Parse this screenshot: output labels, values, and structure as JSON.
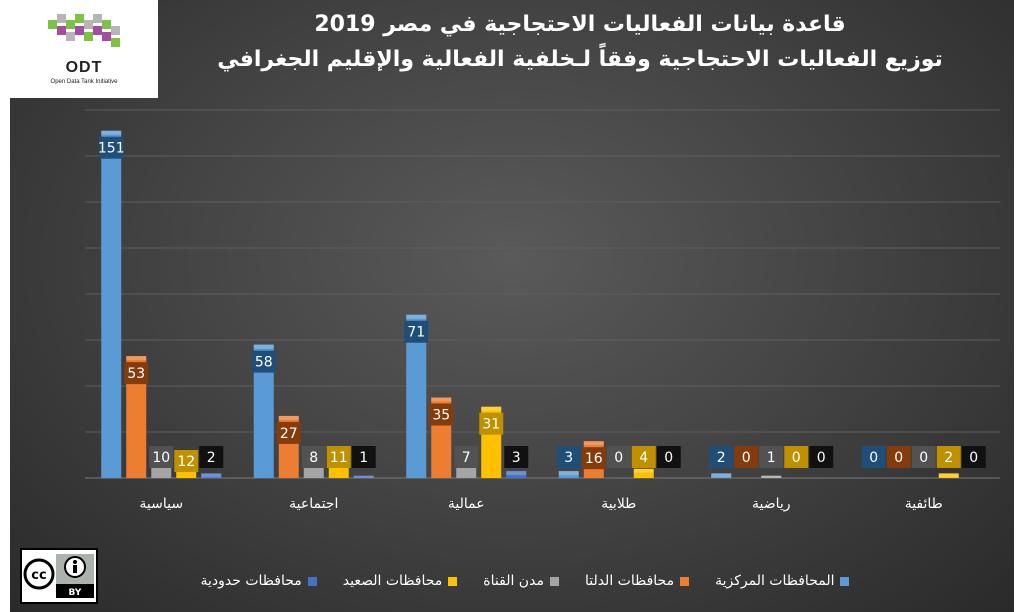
{
  "logo": {
    "name": "ODT",
    "subtitle": "Open Data Tank Initiative"
  },
  "license": {
    "label": "BY",
    "icon": "creative-commons-by-icon"
  },
  "chart_data": {
    "type": "bar",
    "title": "قاعدة بيانات الفعاليات الاحتجاجية في مصر 2019",
    "subtitle": "توزيع الفعاليات الاحتجاجية وفقاً لـخلفية الفعالية والإقليم الجغرافي",
    "categories": [
      "سياسية",
      "اجتماعية",
      "عمالية",
      "طلابية",
      "رياضية",
      "طائفية"
    ],
    "ylim": [
      0,
      160
    ],
    "grid": true,
    "legend_position": "bottom",
    "series": [
      {
        "name": "المحافظات المركزية",
        "color": "#5b9bd5",
        "label_color": "#1f4e79",
        "values": [
          151,
          58,
          71,
          3,
          2,
          0
        ]
      },
      {
        "name": "محافظات الدلتا",
        "color": "#ed7d31",
        "label_color": "#843c0c",
        "values": [
          53,
          27,
          35,
          16,
          0,
          0
        ]
      },
      {
        "name": "مدن القناة",
        "color": "#a5a5a5",
        "label_color": "#525252",
        "values": [
          10,
          8,
          7,
          0,
          1,
          0
        ]
      },
      {
        "name": "محافظات الصعيد",
        "color": "#ffc000",
        "label_color": "#bf9000",
        "values": [
          12,
          11,
          31,
          4,
          0,
          2
        ]
      },
      {
        "name": "محافظات حدودية",
        "color": "#4472c4",
        "label_color": "#111111",
        "values": [
          2,
          1,
          3,
          0,
          0,
          0
        ]
      }
    ]
  }
}
